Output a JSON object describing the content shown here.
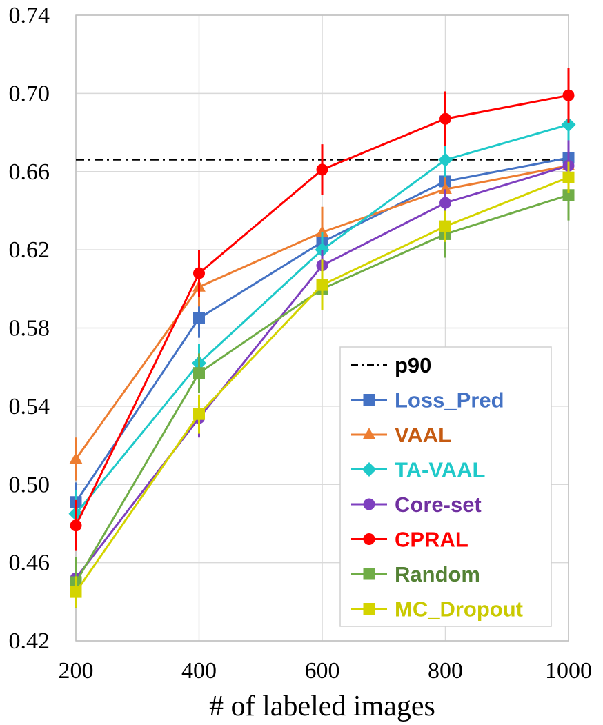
{
  "chart_data": {
    "type": "line",
    "xlabel": "# of labeled images",
    "ylabel": "",
    "x": [
      200,
      400,
      600,
      800,
      1000
    ],
    "xlim": [
      200,
      1000
    ],
    "ylim": [
      0.42,
      0.74
    ],
    "x_ticks": [
      "200",
      "400",
      "600",
      "800",
      "1000"
    ],
    "y_ticks": [
      "0.42",
      "0.46",
      "0.50",
      "0.54",
      "0.58",
      "0.62",
      "0.66",
      "0.70",
      "0.74"
    ],
    "grid": true,
    "legend_position": "bottom-right",
    "reference_line": {
      "name": "p90",
      "value": 0.666,
      "color": "#000000",
      "style": "dash-dot"
    },
    "series": [
      {
        "name": "Loss_Pred",
        "color": "#4472C4",
        "marker": "square",
        "values": [
          0.491,
          0.585,
          0.624,
          0.655,
          0.667
        ],
        "errors": [
          0.01,
          0.01,
          0.007,
          0.006,
          0.006
        ]
      },
      {
        "name": "VAAL",
        "color": "#ED7D31",
        "marker": "triangle",
        "values": [
          0.513,
          0.601,
          0.629,
          0.651,
          0.663
        ],
        "errors": [
          0.011,
          0.01,
          0.013,
          0.007,
          0.006
        ]
      },
      {
        "name": "TA-VAAL",
        "color": "#1FC9C9",
        "marker": "diamond",
        "values": [
          0.485,
          0.562,
          0.62,
          0.666,
          0.684
        ],
        "errors": [
          0.012,
          0.01,
          0.009,
          0.009,
          0.008
        ]
      },
      {
        "name": "Core-set",
        "color": "#7E3FBF",
        "marker": "circle",
        "values": [
          0.452,
          0.534,
          0.612,
          0.644,
          0.663
        ],
        "errors": [
          0.009,
          0.01,
          0.008,
          0.007,
          0.013
        ]
      },
      {
        "name": "CPRAL",
        "color": "#FF0000",
        "marker": "circle",
        "values": [
          0.479,
          0.608,
          0.661,
          0.687,
          0.699
        ],
        "errors": [
          0.013,
          0.012,
          0.013,
          0.014,
          0.014
        ]
      },
      {
        "name": "Random",
        "color": "#70AD47",
        "marker": "square",
        "values": [
          0.45,
          0.557,
          0.6,
          0.628,
          0.648
        ],
        "errors": [
          0.013,
          0.01,
          0.011,
          0.012,
          0.013
        ]
      },
      {
        "name": "MC_Dropout",
        "color": "#D4D400",
        "marker": "square",
        "values": [
          0.445,
          0.536,
          0.602,
          0.632,
          0.657
        ],
        "errors": [
          0.008,
          0.01,
          0.013,
          0.008,
          0.008
        ]
      }
    ]
  },
  "legend": {
    "p90": "p90",
    "items": [
      "Loss_Pred",
      "VAAL",
      "TA-VAAL",
      "Core-set",
      "CPRAL",
      "Random",
      "MC_Dropout"
    ],
    "text_colors": [
      "#4472C4",
      "#C55A11",
      "#1FC9C9",
      "#7030A0",
      "#FF0000",
      "#548235",
      "#C9C900"
    ]
  }
}
